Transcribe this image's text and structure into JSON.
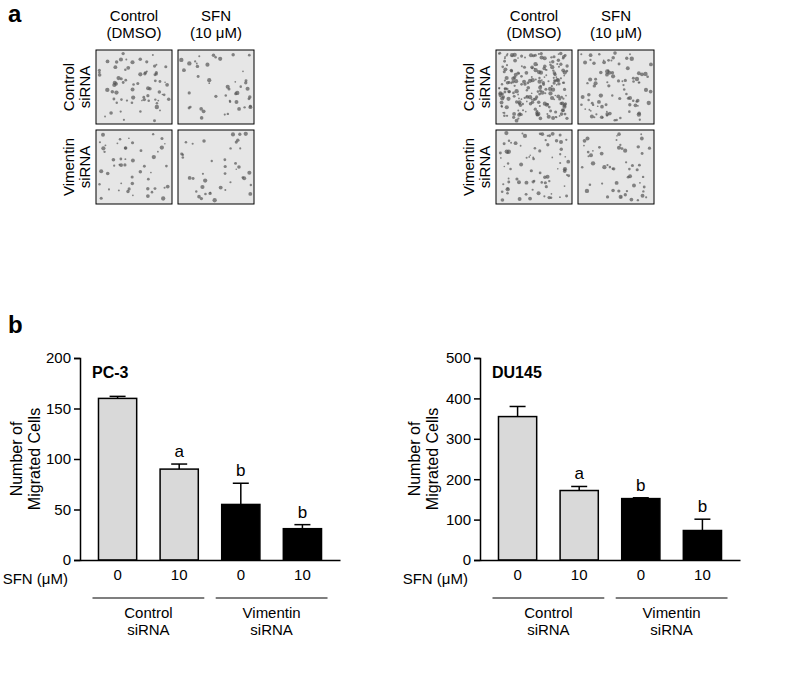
{
  "panel_labels": [
    "a",
    "b"
  ],
  "micrograph_panels": [
    {
      "columns": [
        [
          "Control",
          "(DMSO)"
        ],
        [
          "SFN",
          "(10 μM)"
        ]
      ],
      "rows": [
        [
          "Control",
          "siRNA"
        ],
        [
          "Vimentin",
          "siRNA"
        ]
      ]
    },
    {
      "columns": [
        [
          "Control",
          "(DMSO)"
        ],
        [
          "SFN",
          "(10 μM)"
        ]
      ],
      "rows": [
        [
          "Control",
          "siRNA"
        ],
        [
          "Vimentin",
          "siRNA"
        ]
      ]
    }
  ],
  "chart_data": [
    {
      "type": "bar",
      "title": "PC-3",
      "y_label": [
        "Number of",
        "Migrated Cells"
      ],
      "x_label": "SFN (μM)",
      "categories": [
        "0",
        "10",
        "0",
        "10"
      ],
      "values": [
        160,
        90,
        55,
        31
      ],
      "errors": [
        2,
        5,
        21,
        4
      ],
      "colors": [
        "#d9d9d9",
        "#d9d9d9",
        "#000000",
        "#000000"
      ],
      "ylim": [
        0,
        200
      ],
      "yticks": [
        0,
        50,
        100,
        150,
        200
      ],
      "groups": [
        {
          "label": [
            "Control",
            "siRNA"
          ],
          "categories": [
            0,
            1
          ]
        },
        {
          "label": [
            "Vimentin",
            "siRNA"
          ],
          "categories": [
            2,
            3
          ]
        }
      ],
      "annotations": [
        {
          "category": 1,
          "text": "a"
        },
        {
          "category": 2,
          "text": "b"
        },
        {
          "category": 3,
          "text": "b"
        }
      ]
    },
    {
      "type": "bar",
      "title": "DU145",
      "y_label": [
        "Number of",
        "Migrated Cells"
      ],
      "x_label": "SFN (μM)",
      "categories": [
        "0",
        "10",
        "0",
        "10"
      ],
      "values": [
        355,
        172,
        152,
        73
      ],
      "errors": [
        25,
        10,
        2,
        28
      ],
      "colors": [
        "#d9d9d9",
        "#d9d9d9",
        "#000000",
        "#000000"
      ],
      "ylim": [
        0,
        500
      ],
      "yticks": [
        0,
        100,
        200,
        300,
        400,
        500
      ],
      "groups": [
        {
          "label": [
            "Control",
            "siRNA"
          ],
          "categories": [
            0,
            1
          ]
        },
        {
          "label": [
            "Vimentin",
            "siRNA"
          ],
          "categories": [
            2,
            3
          ]
        }
      ],
      "annotations": [
        {
          "category": 1,
          "text": "a"
        },
        {
          "category": 2,
          "text": "b"
        },
        {
          "category": 3,
          "text": "b"
        }
      ]
    }
  ]
}
